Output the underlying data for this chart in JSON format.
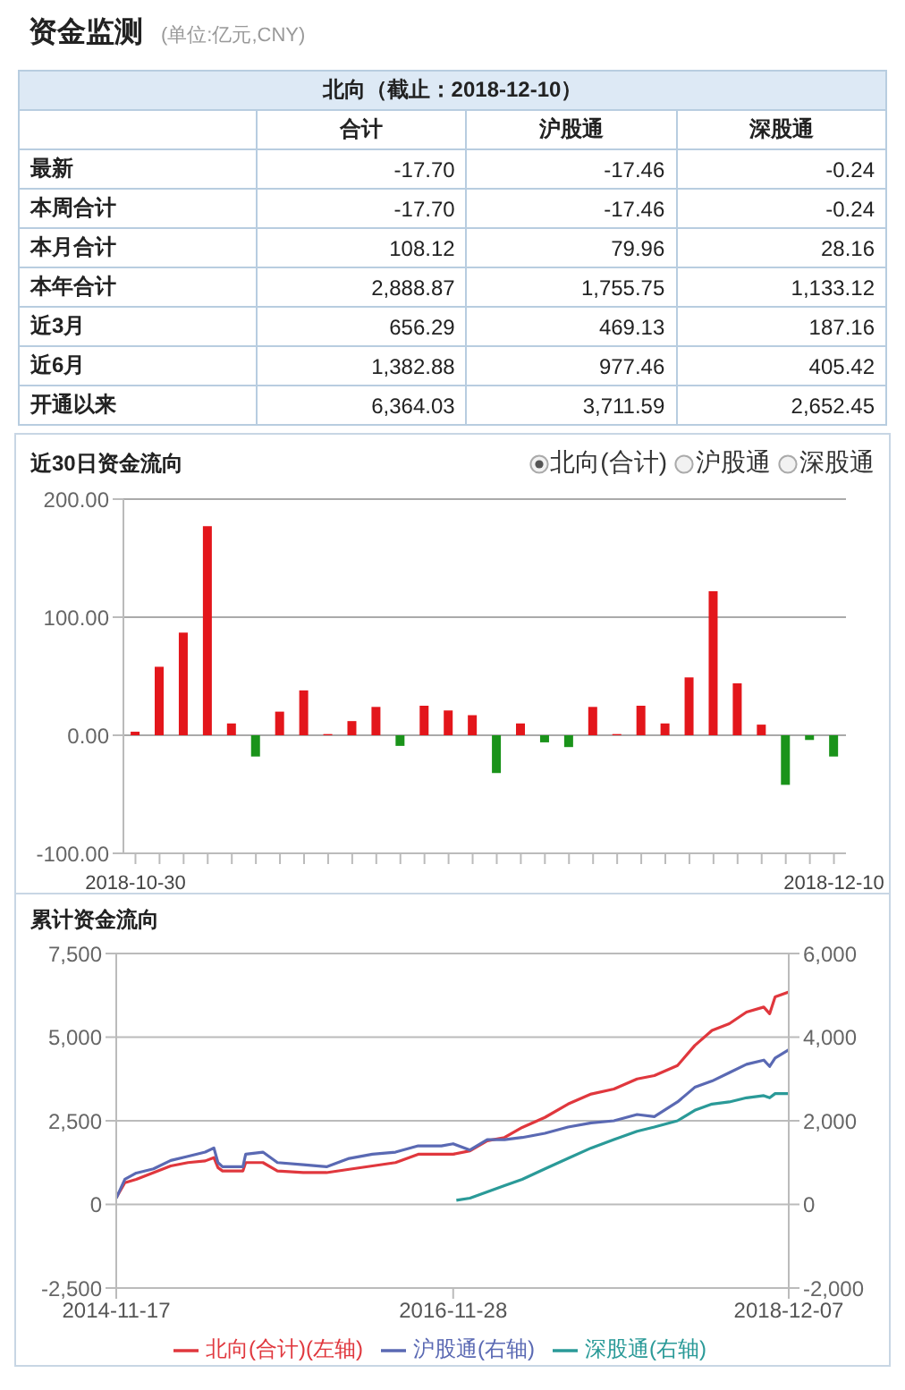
{
  "chart_data": [
    {
      "type": "other",
      "title": "资金监测",
      "subtitle": "(单位:亿元,CNY)",
      "annotations": [
        "北向（截止：2018-12-10）"
      ],
      "categories": [
        "合计",
        "沪股通",
        "深股通"
      ],
      "y_categories": [
        "最新",
        "本周合计",
        "本月合计",
        "本年合计",
        "近3月",
        "近6月",
        "开通以来"
      ],
      "cell_labels": [
        [
          "-17.70",
          "-17.46",
          "-0.24"
        ],
        [
          "-17.70",
          "-17.46",
          "-0.24"
        ],
        [
          "108.12",
          "79.96",
          "28.16"
        ],
        [
          "2,888.87",
          "1,755.75",
          "1,133.12"
        ],
        [
          "656.29",
          "469.13",
          "187.16"
        ],
        [
          "1,382.88",
          "977.46",
          "405.42"
        ],
        [
          "6,364.03",
          "3,711.59",
          "2,652.45"
        ]
      ]
    },
    {
      "type": "bar",
      "title": "近30日资金流向",
      "annotations": [
        "北向(合计)",
        "沪股通",
        "深股通"
      ],
      "categories": [
        "2018-10-30",
        null,
        null,
        null,
        null,
        null,
        null,
        null,
        null,
        null,
        null,
        null,
        null,
        null,
        null,
        null,
        null,
        null,
        null,
        null,
        null,
        null,
        null,
        null,
        null,
        null,
        null,
        null,
        null,
        "2018-12-10"
      ],
      "values": [
        3,
        58,
        87,
        177,
        10,
        -18,
        20,
        38,
        1,
        12,
        24,
        -9,
        25,
        21,
        17,
        -32,
        10,
        -6,
        -10,
        24,
        1,
        25,
        10,
        49,
        122,
        44,
        9,
        -42,
        -4,
        -18
      ],
      "colors": [
        "#e3161b",
        "#e3161b",
        "#e3161b",
        "#e3161b",
        "#e3161b",
        "#1a931a",
        "#e3161b",
        "#e3161b",
        "#e3161b",
        "#e3161b",
        "#e3161b",
        "#1a931a",
        "#e3161b",
        "#e3161b",
        "#e3161b",
        "#1a931a",
        "#e3161b",
        "#1a931a",
        "#1a931a",
        "#e3161b",
        "#e3161b",
        "#e3161b",
        "#e3161b",
        "#e3161b",
        "#e3161b",
        "#e3161b",
        "#e3161b",
        "#1a931a",
        "#1a931a",
        "#1a931a"
      ],
      "ylim": [
        -100,
        200
      ],
      "yticks": [
        {
          "value": -100,
          "label": "-100.00"
        },
        {
          "value": 0,
          "label": "0.00"
        },
        {
          "value": 100,
          "label": "100.00"
        },
        {
          "value": 200,
          "label": "200.00"
        }
      ],
      "grid": "y"
    },
    {
      "type": "line",
      "title": "累计资金流向",
      "xlim": [
        "2014-11-17",
        "2018-12-07"
      ],
      "xticks": [
        "2014-11-17",
        "2016-11-28",
        "2018-12-07"
      ],
      "ylim": [
        -2500,
        7500
      ],
      "yticks": [
        {
          "value": -2500,
          "label": "-2,500"
        },
        0,
        {
          "value": 2500,
          "label": "2,500"
        },
        {
          "value": 5000,
          "label": "5,000"
        },
        {
          "value": 7500,
          "label": "7,500"
        }
      ],
      "y2lim": [
        -2000,
        6000
      ],
      "y2ticks": [
        {
          "value": -2000,
          "label": "-2,000"
        },
        0,
        {
          "value": 2000,
          "label": "2,000"
        },
        {
          "value": 4000,
          "label": "4,000"
        },
        {
          "value": 6000,
          "label": "6,000"
        }
      ],
      "grid": "y",
      "legend": "bottom",
      "marker": "none",
      "x": [
        "2014-11-17",
        "2014-12-06",
        "2014-12-31",
        "2015-02-07",
        "2015-03-17",
        "2015-04-24",
        "2015-06-01",
        "2015-06-20",
        "2015-06-29",
        "2015-07-09",
        "2015-08-23",
        "2015-08-29",
        "2015-10-06",
        "2015-11-07",
        "2016-01-03",
        "2016-02-23",
        "2016-04-13",
        "2016-06-03",
        "2016-07-24",
        "2016-09-12",
        "2016-11-02",
        "2016-11-28",
        "2017-01-04",
        "2017-02-11",
        "2017-03-21",
        "2017-04-29",
        "2017-06-18",
        "2017-08-08",
        "2017-09-28",
        "2017-11-17",
        "2018-01-07",
        "2018-02-14",
        "2018-04-06",
        "2018-05-14",
        "2018-06-21",
        "2018-07-29",
        "2018-09-05",
        "2018-10-13",
        "2018-10-26",
        "2018-11-07",
        "2018-12-07"
      ],
      "series": [
        {
          "name": "北向(合计)(左轴)",
          "color": "#e0373d",
          "values": [
            200,
            650,
            750,
            950,
            1150,
            1250,
            1300,
            1400,
            1100,
            1000,
            1000,
            1250,
            1250,
            1000,
            950,
            950,
            1050,
            1150,
            1250,
            1500,
            1500,
            1500,
            1600,
            1900,
            2000,
            2300,
            2600,
            3000,
            3300,
            3450,
            3750,
            3850,
            4150,
            4750,
            5200,
            5400,
            5750,
            5900,
            5700,
            6200,
            6350
          ]
        },
        {
          "name": "沪股通(右轴)",
          "color": "#5a69b3",
          "axis": "y2",
          "values": [
            150,
            600,
            750,
            850,
            1050,
            1150,
            1250,
            1350,
            1000,
            900,
            900,
            1200,
            1250,
            1000,
            950,
            900,
            1100,
            1200,
            1250,
            1400,
            1400,
            1450,
            1300,
            1550,
            1550,
            1600,
            1700,
            1850,
            1950,
            2000,
            2150,
            2100,
            2450,
            2800,
            2950,
            3150,
            3350,
            3450,
            3300,
            3500,
            3700
          ]
        },
        {
          "name": "深股通(右轴)",
          "color": "#2a9a98",
          "axis": "y2",
          "x": [
            "2016-12-05",
            "2017-01-04",
            "2017-02-11",
            "2017-03-21",
            "2017-04-29",
            "2017-06-18",
            "2017-08-08",
            "2017-09-28",
            "2017-11-17",
            "2018-01-07",
            "2018-02-14",
            "2018-04-06",
            "2018-05-14",
            "2018-06-21",
            "2018-07-29",
            "2018-09-05",
            "2018-10-13",
            "2018-10-26",
            "2018-11-07",
            "2018-12-07"
          ],
          "values": [
            100,
            150,
            300,
            450,
            600,
            850,
            1100,
            1350,
            1550,
            1750,
            1850,
            2000,
            2250,
            2400,
            2450,
            2550,
            2600,
            2550,
            2650,
            2650
          ]
        }
      ]
    }
  ]
}
